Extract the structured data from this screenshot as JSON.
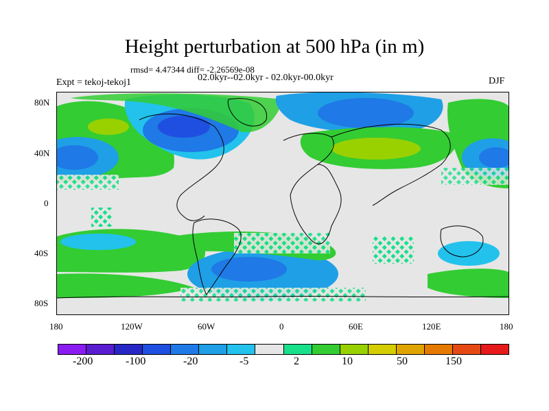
{
  "title": "Height perturbation at 500 hPa (in m)",
  "stats": "rmsd= 4.47344 diff= -2.26569e-08",
  "period": "02.0kyr--02.0kyr - 02.0kyr-00.0kyr",
  "expt": "Expt = tekoj-tekoj1",
  "season": "DJF",
  "lat_labels": [
    "80N",
    "40N",
    "0",
    "40S",
    "80S"
  ],
  "lon_labels": [
    "180",
    "120W",
    "60W",
    "0",
    "60E",
    "120E",
    "180"
  ],
  "colorbar": {
    "colors": [
      "#8a1cf2",
      "#5a1ccf",
      "#2727c6",
      "#1f4fe0",
      "#1f79e6",
      "#1f9fe6",
      "#22c2ec",
      "#e6e6e6",
      "#18e08a",
      "#33cc33",
      "#99d100",
      "#d4cd00",
      "#e0a400",
      "#e67a00",
      "#e64a14",
      "#e61a1a"
    ],
    "labels": [
      "-200",
      "-100",
      "-20",
      "-5",
      "2",
      "10",
      "50",
      "150"
    ]
  },
  "map_fields": {
    "colors": {
      "green": "#33cc33",
      "light_green": "#18e08a",
      "yellow": "#99d100",
      "cyan": "#22c2ec",
      "light_blue": "#1f9fe6",
      "blue": "#1f79e6",
      "dark_blue": "#1f4fe0",
      "gray": "#e6e6e6"
    }
  }
}
